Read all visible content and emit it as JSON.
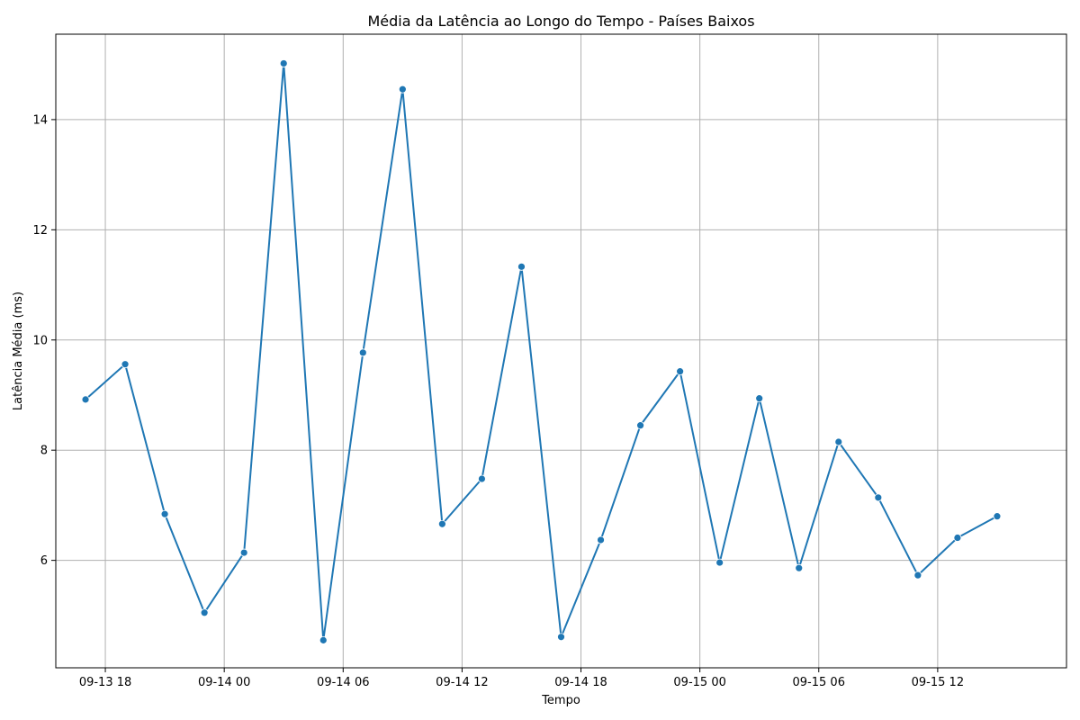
{
  "chart_data": {
    "type": "line",
    "title": "Média da Latência ao Longo do Tempo - Países Baixos",
    "xlabel": "Tempo",
    "ylabel": "Latência Média (ms)",
    "grid": true,
    "line_color": "#1f77b4",
    "marker": "circle",
    "xlim": [
      "2023-09-13T15:30",
      "2023-09-15T18:30"
    ],
    "ylim": [
      4.05,
      15.55
    ],
    "x_ticks": [
      {
        "value": "2023-09-13T18:00",
        "label": "09-13 18"
      },
      {
        "value": "2023-09-14T00:00",
        "label": "09-14 00"
      },
      {
        "value": "2023-09-14T06:00",
        "label": "09-14 06"
      },
      {
        "value": "2023-09-14T12:00",
        "label": "09-14 12"
      },
      {
        "value": "2023-09-14T18:00",
        "label": "09-14 18"
      },
      {
        "value": "2023-09-15T00:00",
        "label": "09-15 00"
      },
      {
        "value": "2023-09-15T06:00",
        "label": "09-15 06"
      },
      {
        "value": "2023-09-15T12:00",
        "label": "09-15 12"
      }
    ],
    "y_ticks": [
      {
        "value": 6,
        "label": "6"
      },
      {
        "value": 8,
        "label": "8"
      },
      {
        "value": 10,
        "label": "10"
      },
      {
        "value": 12,
        "label": "12"
      },
      {
        "value": 14,
        "label": "14"
      }
    ],
    "x": [
      "2023-09-13T17:00",
      "2023-09-13T19:00",
      "2023-09-13T21:00",
      "2023-09-13T23:00",
      "2023-09-14T01:00",
      "2023-09-14T03:00",
      "2023-09-14T05:00",
      "2023-09-14T07:00",
      "2023-09-14T09:00",
      "2023-09-14T11:00",
      "2023-09-14T13:00",
      "2023-09-14T15:00",
      "2023-09-14T17:00",
      "2023-09-14T19:00",
      "2023-09-14T21:00",
      "2023-09-14T23:00",
      "2023-09-15T01:00",
      "2023-09-15T03:00",
      "2023-09-15T05:00",
      "2023-09-15T07:00",
      "2023-09-15T09:00",
      "2023-09-15T11:00",
      "2023-09-15T13:00",
      "2023-09-15T15:00"
    ],
    "series": [
      {
        "values": [
          8.92,
          9.56,
          6.84,
          5.05,
          6.14,
          15.02,
          4.55,
          9.77,
          14.55,
          6.66,
          7.48,
          11.33,
          4.61,
          6.37,
          8.45,
          9.43,
          5.96,
          8.94,
          5.86,
          8.15,
          7.14,
          5.73,
          6.41,
          6.8
        ]
      }
    ]
  }
}
